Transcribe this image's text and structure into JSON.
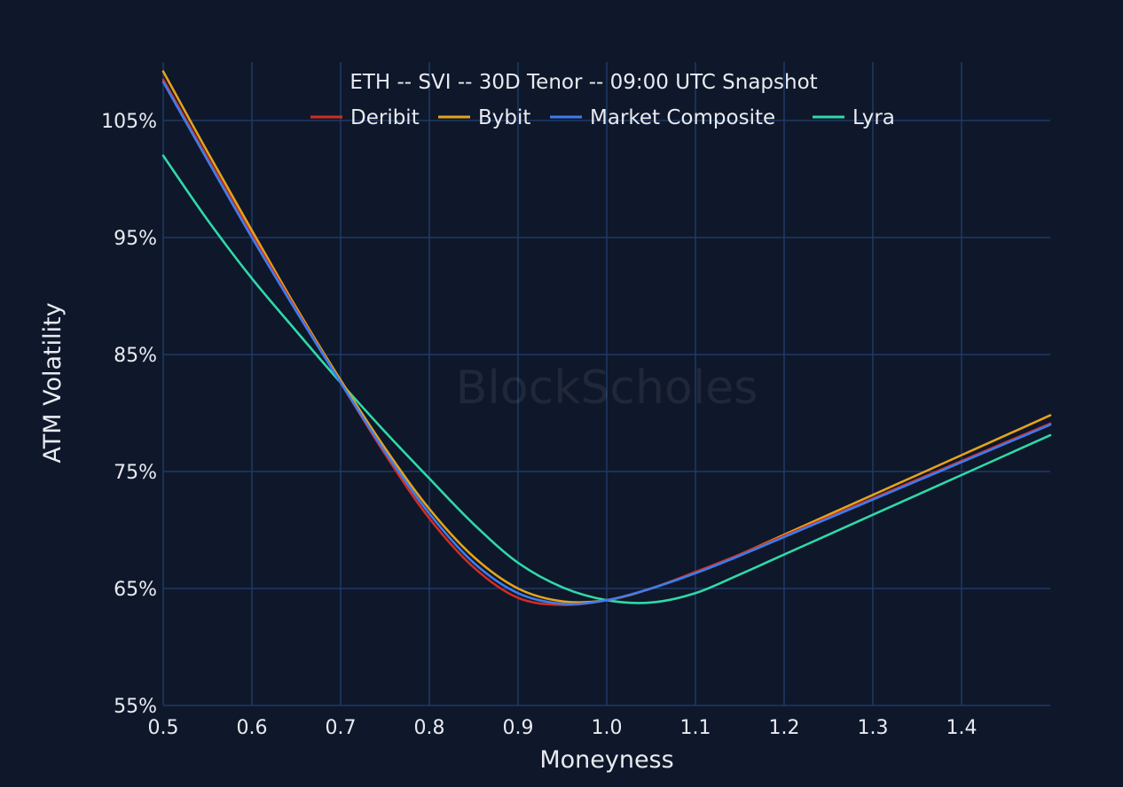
{
  "chart_data": {
    "type": "line",
    "title": "ETH -- SVI -- 30D Tenor -- 09:00 UTC Snapshot",
    "xlabel": "Moneyness",
    "ylabel": "ATM Volatility",
    "watermark": "BlockScholes",
    "xlim": [
      0.5,
      1.5
    ],
    "ylim": [
      55,
      110
    ],
    "x_ticks": [
      0.5,
      0.6,
      0.7,
      0.8,
      0.9,
      1.0,
      1.1,
      1.2,
      1.3,
      1.4
    ],
    "x_tick_labels": [
      "0.5",
      "0.6",
      "0.7",
      "0.8",
      "0.9",
      "1.0",
      "1.1",
      "1.2",
      "1.3",
      "1.4"
    ],
    "y_ticks": [
      55,
      65,
      75,
      85,
      95,
      105
    ],
    "y_tick_labels": [
      "55%",
      "65%",
      "75%",
      "85%",
      "95%",
      "105%"
    ],
    "grid": true,
    "legend_position": "top-center",
    "background_color": "#0f172a",
    "grid_color": "#1e3a66",
    "series": [
      {
        "name": "Deribit",
        "color": "#d42c22",
        "x": [
          0.5,
          0.55,
          0.6,
          0.65,
          0.7,
          0.75,
          0.8,
          0.85,
          0.9,
          0.95,
          1.0,
          1.05,
          1.1,
          1.15,
          1.2,
          1.25,
          1.3,
          1.35,
          1.4,
          1.45,
          1.5
        ],
        "y": [
          108.5,
          101.8,
          95.2,
          88.8,
          82.6,
          76.5,
          71.0,
          66.8,
          64.2,
          63.6,
          64.0,
          65.0,
          66.4,
          67.9,
          69.5,
          71.1,
          72.7,
          74.3,
          75.9,
          77.5,
          79.1
        ]
      },
      {
        "name": "Bybit",
        "color": "#e3a41c",
        "x": [
          0.5,
          0.55,
          0.6,
          0.65,
          0.7,
          0.75,
          0.8,
          0.85,
          0.9,
          0.95,
          1.0,
          1.05,
          1.1,
          1.15,
          1.2,
          1.25,
          1.3,
          1.35,
          1.4,
          1.45,
          1.5
        ],
        "y": [
          109.2,
          102.3,
          95.6,
          89.0,
          82.8,
          77.0,
          71.8,
          67.7,
          65.0,
          63.9,
          64.0,
          65.0,
          66.4,
          67.9,
          69.6,
          71.3,
          73.0,
          74.7,
          76.4,
          78.1,
          79.8
        ]
      },
      {
        "name": "Market Composite",
        "color": "#3b7df0",
        "x": [
          0.5,
          0.55,
          0.6,
          0.65,
          0.7,
          0.75,
          0.8,
          0.85,
          0.9,
          0.95,
          1.0,
          1.05,
          1.1,
          1.15,
          1.2,
          1.25,
          1.3,
          1.35,
          1.4,
          1.45,
          1.5
        ],
        "y": [
          108.3,
          101.6,
          95.0,
          88.7,
          82.6,
          76.7,
          71.4,
          67.2,
          64.6,
          63.7,
          64.0,
          65.0,
          66.3,
          67.8,
          69.4,
          71.0,
          72.6,
          74.2,
          75.8,
          77.4,
          79.0
        ]
      },
      {
        "name": "Lyra",
        "color": "#2fd9a8",
        "x": [
          0.5,
          0.55,
          0.6,
          0.65,
          0.7,
          0.75,
          0.8,
          0.85,
          0.9,
          0.95,
          1.0,
          1.05,
          1.1,
          1.15,
          1.2,
          1.25,
          1.3,
          1.35,
          1.4,
          1.45,
          1.5
        ],
        "y": [
          102.0,
          96.5,
          91.5,
          87.0,
          82.6,
          78.4,
          74.4,
          70.5,
          67.2,
          65.1,
          64.0,
          63.8,
          64.6,
          66.2,
          67.9,
          69.6,
          71.3,
          73.0,
          74.7,
          76.4,
          78.1
        ]
      }
    ]
  }
}
